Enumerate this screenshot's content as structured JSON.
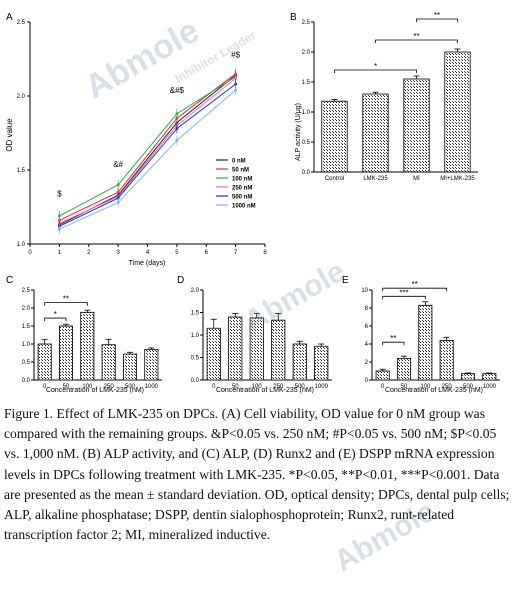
{
  "panels": {
    "A": {
      "label": "A",
      "ylabel": "OD value",
      "xlabel": "Time (days)"
    },
    "B": {
      "label": "B",
      "ylabel": "ALP activity (U/μg)"
    },
    "C": {
      "label": "C",
      "ylabel": "mRNA relative expression (ALP)",
      "xlabel": "Concentration of LMK-235 (nM)"
    },
    "D": {
      "label": "D",
      "ylabel": "mRNA relative expression (Runx2)",
      "xlabel": "Concentration of LMK-235 (nM)"
    },
    "E": {
      "label": "E",
      "ylabel": "mRNA relative expression (DSPP)",
      "xlabel": "Concentration of LMK-235 (nM)"
    }
  },
  "chart_data": [
    {
      "panel": "A",
      "type": "line",
      "x": [
        1,
        3,
        5,
        7
      ],
      "xticks": [
        0,
        1,
        2,
        3,
        4,
        5,
        6,
        7,
        8
      ],
      "yticks": [
        "1.0",
        "1.5",
        "2.0",
        "2.5"
      ],
      "ylim": [
        1.0,
        2.5
      ],
      "xlim": [
        0,
        8
      ],
      "xlabel": "Time (days)",
      "ylabel": "OD value",
      "series": [
        {
          "name": "0 nM",
          "color": "#222222",
          "values": [
            1.13,
            1.33,
            1.82,
            2.14
          ]
        },
        {
          "name": "50 nM",
          "color": "#e8253a",
          "values": [
            1.16,
            1.35,
            1.85,
            2.15
          ]
        },
        {
          "name": "100 nM",
          "color": "#2ea84a",
          "values": [
            1.19,
            1.4,
            1.88,
            2.13
          ]
        },
        {
          "name": "250 nM",
          "color": "#e86ad0",
          "values": [
            1.14,
            1.32,
            1.8,
            2.12
          ]
        },
        {
          "name": "500 nM",
          "color": "#2233bb",
          "values": [
            1.12,
            1.31,
            1.78,
            2.08
          ]
        },
        {
          "name": "1000 nM",
          "color": "#7ab8e8",
          "values": [
            1.1,
            1.28,
            1.7,
            2.04
          ]
        }
      ],
      "annotations": [
        {
          "text": "$",
          "x": 1,
          "y": 1.32
        },
        {
          "text": "&#",
          "x": 3,
          "y": 1.52
        },
        {
          "text": "&#$",
          "x": 5,
          "y": 2.02
        },
        {
          "text": "#$",
          "x": 7,
          "y": 2.26
        }
      ]
    },
    {
      "panel": "B",
      "type": "bar",
      "categories": [
        "Control",
        "LMK-235",
        "MI",
        "MI+LMK-235"
      ],
      "values": [
        1.18,
        1.3,
        1.55,
        2.0
      ],
      "errors": [
        0.03,
        0.03,
        0.05,
        0.05
      ],
      "ylim": [
        0,
        2.5
      ],
      "yticks": [
        "0.0",
        "0.5",
        "1.0",
        "1.5",
        "2.0",
        "2.5"
      ],
      "ylabel": "ALP activity (U/μg)",
      "significance": [
        {
          "from": 0,
          "to": 2,
          "text": "*",
          "level": 1.7
        },
        {
          "from": 1,
          "to": 3,
          "text": "**",
          "level": 2.2
        },
        {
          "from": 2,
          "to": 3,
          "text": "**",
          "level": 2.55
        }
      ]
    },
    {
      "panel": "C",
      "type": "bar",
      "categories": [
        "0",
        "50",
        "100",
        "250",
        "500",
        "1000"
      ],
      "values": [
        1.0,
        1.5,
        1.88,
        0.98,
        0.72,
        0.85
      ],
      "errors": [
        0.12,
        0.05,
        0.06,
        0.15,
        0.05,
        0.04
      ],
      "ylim": [
        0,
        2.5
      ],
      "yticks": [
        "0.0",
        "0.5",
        "1.0",
        "1.5",
        "2.0",
        "2.5"
      ],
      "xlabel": "Concentration of LMK-235 (nM)",
      "ylabel": "mRNA relative expression (ALP)",
      "significance": [
        {
          "from": 0,
          "to": 1,
          "text": "*",
          "level": 1.72
        },
        {
          "from": 0,
          "to": 2,
          "text": "**",
          "level": 2.15
        }
      ]
    },
    {
      "panel": "D",
      "type": "bar",
      "categories": [
        "0",
        "50",
        "100",
        "250",
        "500",
        "1000"
      ],
      "values": [
        1.15,
        1.4,
        1.38,
        1.33,
        0.8,
        0.75
      ],
      "errors": [
        0.2,
        0.08,
        0.1,
        0.15,
        0.06,
        0.05
      ],
      "ylim": [
        0,
        2.0
      ],
      "yticks": [
        "0.0",
        "0.5",
        "1.0",
        "1.5",
        "2.0"
      ],
      "xlabel": "Concentration of LMK-235 (nM)",
      "ylabel": "mRNA relative expression (Runx2)",
      "significance": []
    },
    {
      "panel": "E",
      "type": "bar",
      "categories": [
        "0",
        "50",
        "100",
        "250",
        "500",
        "1000"
      ],
      "values": [
        1.0,
        2.4,
        8.3,
        4.4,
        0.7,
        0.7
      ],
      "errors": [
        0.2,
        0.25,
        0.4,
        0.35,
        0.08,
        0.08
      ],
      "ylim": [
        0,
        10
      ],
      "yticks": [
        "0",
        "2",
        "4",
        "6",
        "8",
        "10"
      ],
      "xlabel": "Concentration of LMK-235 (nM)",
      "ylabel": "mRNA relative expression (DSPP)",
      "significance": [
        {
          "from": 0,
          "to": 1,
          "text": "**",
          "level": 4.2
        },
        {
          "from": 0,
          "to": 2,
          "text": "***",
          "level": 9.3
        },
        {
          "from": 0,
          "to": 3,
          "text": "**",
          "level": 10.2
        }
      ]
    }
  ],
  "caption": "Figure 1. Effect of LMK-235 on DPCs. (A) Cell viability, OD value for 0 nM group was compared with the remaining groups. &P<0.05 vs. 250 nM; #P<0.05 vs. 500 nM; $P<0.05 vs. 1,000 nM. (B) ALP activity, and (C) ALP, (D) Runx2 and (E) DSPP mRNA expression levels in DPCs following treatment with LMK-235. *P<0.05, **P<0.01, ***P<0.001. Data are presented as the mean ± standard deviation. OD, optical density; DPCs, dental pulp cells; ALP, alkaline phosphatase; DSPP, dentin sialophosphoprotein; Runx2, runt-related transcription factor 2; MI, mineralized inductive.",
  "watermark": {
    "brand": "Abmole",
    "tagline": "Inhibitor Leader"
  }
}
